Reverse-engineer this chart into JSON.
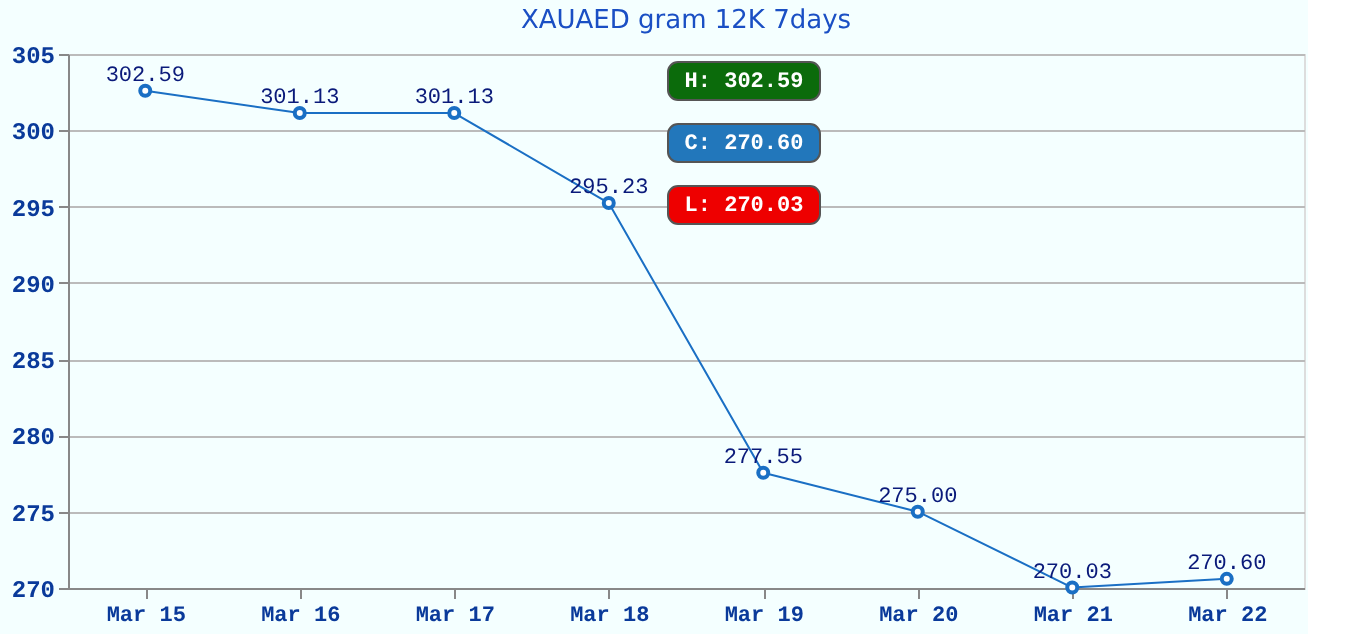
{
  "chart_data": {
    "type": "line",
    "title": "XAUAED gram 12K 7days",
    "categories": [
      "Mar 15",
      "Mar 16",
      "Mar 17",
      "Mar 18",
      "Mar 19",
      "Mar 20",
      "Mar 21",
      "Mar 22"
    ],
    "series": [
      {
        "color": "#1a6fc4",
        "values": [
          302.59,
          301.13,
          301.13,
          295.23,
          277.55,
          275.0,
          270.03,
          270.6
        ],
        "value_labels": [
          "302.59",
          "301.13",
          "301.13",
          "295.23",
          "277.55",
          "275.00",
          "270.03",
          "270.60"
        ]
      }
    ],
    "ylim": [
      270,
      305
    ],
    "yticks": [
      270,
      275,
      280,
      285,
      290,
      295,
      300,
      305
    ],
    "grid": "y",
    "marker": "circle",
    "line_style": "solid",
    "annotations": [
      "H: 302.59",
      "C: 270.60",
      "L: 270.03"
    ]
  }
}
